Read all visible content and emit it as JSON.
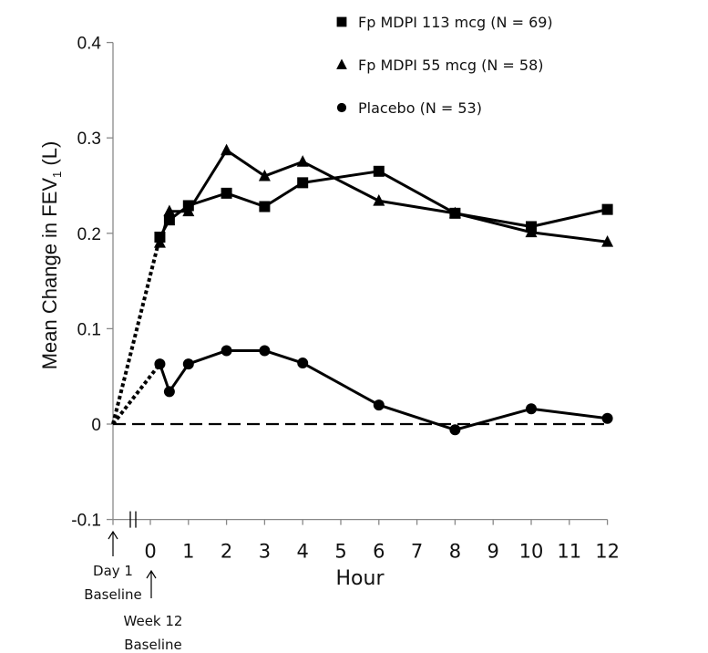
{
  "chart_data": {
    "type": "line",
    "title": "",
    "xlabel": "Hour",
    "ylabel": "Mean Change in FEV",
    "ylabel_subscript": "1",
    "ylabel_suffix": " (L)",
    "ylim": [
      -0.1,
      0.4
    ],
    "xlim": [
      0,
      12
    ],
    "y_ticks": [
      "-0.1",
      "0",
      "0.1",
      "0.2",
      "0.3",
      "0.4"
    ],
    "y_tick_values": [
      -0.1,
      0,
      0.1,
      0.2,
      0.3,
      0.4
    ],
    "x_ticks": [
      "0",
      "1",
      "2",
      "3",
      "4",
      "5",
      "6",
      "7",
      "8",
      "9",
      "10",
      "11",
      "12"
    ],
    "x_tick_values": [
      0,
      1,
      2,
      3,
      4,
      5,
      6,
      7,
      8,
      9,
      10,
      11,
      12
    ],
    "grid": false,
    "legend_position": "top-right",
    "reference_line": {
      "y": 0,
      "style": "dashed"
    },
    "baseline_connector": {
      "from_label": "Day 1 Baseline",
      "style": "dotted",
      "y": 0
    },
    "annotations": {
      "day1_baseline": [
        "Day 1",
        "Baseline"
      ],
      "week12_baseline": [
        "Week 12",
        "Baseline"
      ]
    },
    "series": [
      {
        "name": "Fp MDPI 113 mcg (N = 69)",
        "marker": "square",
        "color": "#000000",
        "x": [
          0.25,
          0.5,
          1,
          2,
          3,
          4,
          6,
          8,
          10,
          12
        ],
        "y": [
          0.196,
          0.214,
          0.229,
          0.242,
          0.228,
          0.253,
          0.265,
          0.221,
          0.207,
          0.225
        ]
      },
      {
        "name": "Fp MDPI 55 mcg (N = 58)",
        "marker": "triangle",
        "color": "#000000",
        "x": [
          0.25,
          0.5,
          1,
          2,
          3,
          4,
          6,
          8,
          10,
          12
        ],
        "y": [
          0.19,
          0.223,
          0.223,
          0.287,
          0.26,
          0.275,
          0.234,
          0.221,
          0.201,
          0.191
        ]
      },
      {
        "name": "Placebo (N = 53)",
        "marker": "circle",
        "color": "#000000",
        "x": [
          0.25,
          0.5,
          1,
          2,
          3,
          4,
          6,
          8,
          10,
          12
        ],
        "y": [
          0.063,
          0.034,
          0.063,
          0.077,
          0.077,
          0.064,
          0.02,
          -0.006,
          0.016,
          0.006
        ]
      }
    ]
  }
}
